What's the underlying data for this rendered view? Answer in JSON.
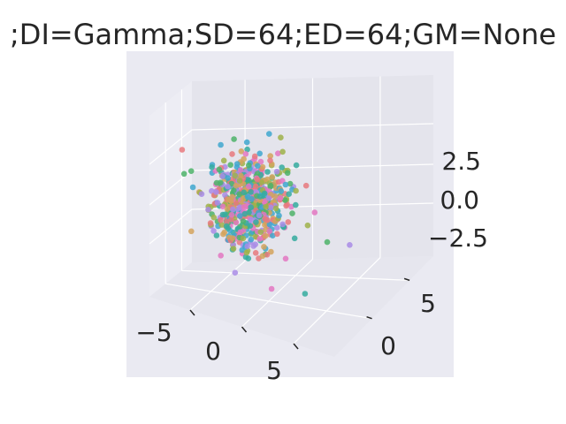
{
  "chart_data": {
    "type": "scatter",
    "projection": "3d",
    "title": ";DI=Gamma;SD=64;ED=64;GM=None",
    "xlabel": "",
    "ylabel": "",
    "zlabel": "",
    "xlim": [
      -7,
      11
    ],
    "ylim": [
      -7,
      9
    ],
    "zlim": [
      -4.5,
      4.5
    ],
    "x_ticks": [
      "−5",
      "0",
      "5"
    ],
    "y_ticks": [
      "0",
      "5"
    ],
    "z_ticks": [
      "2.5",
      "0.0",
      "−2.5"
    ],
    "grid": true,
    "legend": "none",
    "pane_color": "#EAEAF2",
    "grid_color": "#ffffff",
    "series_colors": [
      "#e8797e",
      "#d4a35d",
      "#9fb24a",
      "#4db36a",
      "#35ab9f",
      "#3fa7cf",
      "#a98ce6",
      "#e377c2"
    ],
    "points": []
  }
}
